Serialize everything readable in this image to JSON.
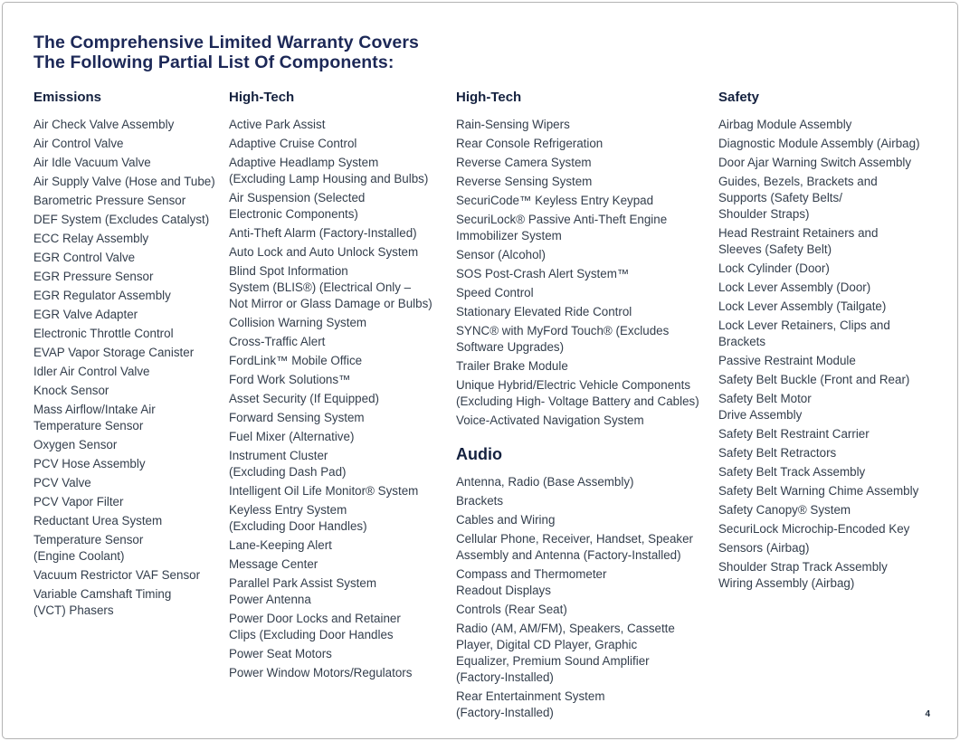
{
  "page": {
    "title_lines": {
      "line1": "The Comprehensive Limited Warranty Covers",
      "line2": "The Following Partial List Of Components:"
    },
    "page_number": "4",
    "colors": {
      "title": "#1c2857",
      "heading": "#14213f",
      "body": "#333e4c",
      "page_border": "#b3b3b3"
    }
  },
  "columns": [
    {
      "sections": [
        {
          "heading": "Emissions",
          "heading_large": false,
          "items": [
            "Air Check Valve Assembly",
            "Air Control Valve",
            "Air Idle Vacuum Valve",
            "Air Supply Valve (Hose and Tube)",
            "Barometric Pressure Sensor",
            "DEF System (Excludes Catalyst)",
            "ECC Relay Assembly",
            "EGR Control Valve",
            "EGR Pressure Sensor",
            "EGR Regulator Assembly",
            "EGR Valve Adapter",
            "Electronic Throttle Control",
            "EVAP Vapor Storage Canister",
            "Idler Air Control Valve",
            "Knock Sensor",
            "Mass Airflow/Intake Air\nTemperature Sensor",
            "Oxygen Sensor",
            "PCV Hose Assembly",
            "PCV Valve",
            "PCV Vapor Filter",
            "Reductant Urea System",
            "Temperature Sensor\n(Engine Coolant)",
            "Vacuum Restrictor VAF Sensor",
            "Variable Camshaft Timing\n(VCT) Phasers"
          ]
        }
      ]
    },
    {
      "sections": [
        {
          "heading": "High-Tech",
          "heading_large": false,
          "items": [
            "Active Park Assist",
            "Adaptive Cruise Control",
            "Adaptive Headlamp System\n(Excluding Lamp Housing and Bulbs)",
            "Air Suspension (Selected\nElectronic Components)",
            "Anti-Theft Alarm (Factory-Installed)",
            "Auto Lock and Auto Unlock System",
            "Blind Spot Information\nSystem (BLIS®) (Electrical Only –\nNot Mirror or Glass Damage or Bulbs)",
            "Collision Warning System",
            "Cross-Traffic Alert",
            "FordLink™ Mobile Office",
            "Ford Work Solutions™",
            "Asset Security (If Equipped)",
            "Forward Sensing System",
            "Fuel Mixer (Alternative)",
            "Instrument Cluster\n(Excluding Dash Pad)",
            "Intelligent Oil Life Monitor® System",
            "Keyless Entry System\n(Excluding Door Handles)",
            "Lane-Keeping Alert",
            "Message Center",
            "Parallel Park Assist System\nPower Antenna",
            "Power Door Locks and Retainer\nClips (Excluding Door Handles",
            "Power Seat Motors",
            "Power Window Motors/Regulators"
          ]
        }
      ]
    },
    {
      "sections": [
        {
          "heading": "High-Tech",
          "heading_large": false,
          "items": [
            "Rain-Sensing Wipers",
            "Rear Console Refrigeration",
            "Reverse Camera System",
            "Reverse Sensing System",
            "SecuriCode™ Keyless Entry Keypad",
            "SecuriLock® Passive Anti-Theft Engine\nImmobilizer System",
            "Sensor (Alcohol)",
            "SOS Post-Crash Alert System™",
            "Speed Control",
            "Stationary Elevated Ride Control",
            "SYNC® with MyFord Touch® (Excludes\nSoftware Upgrades)",
            "Trailer Brake Module",
            "Unique Hybrid/Electric Vehicle Components\n(Excluding High- Voltage Battery and Cables)",
            "Voice-Activated Navigation System"
          ]
        },
        {
          "heading": "Audio",
          "heading_large": true,
          "items": [
            "Antenna, Radio (Base Assembly)",
            "Brackets",
            "Cables and Wiring",
            "Cellular Phone, Receiver, Handset, Speaker\nAssembly and Antenna (Factory-Installed)",
            "Compass and Thermometer\nReadout Displays",
            "Controls (Rear Seat)",
            "Radio (AM, AM/FM), Speakers, Cassette\nPlayer, Digital CD Player, Graphic\nEqualizer, Premium Sound Amplifier\n(Factory-Installed)",
            "Rear Entertainment System\n(Factory-Installed)"
          ]
        }
      ]
    },
    {
      "sections": [
        {
          "heading": "Safety",
          "heading_large": false,
          "items": [
            "Airbag Module Assembly",
            "Diagnostic Module Assembly (Airbag)",
            "Door Ajar Warning Switch Assembly",
            "Guides, Bezels, Brackets and\nSupports (Safety Belts/\nShoulder Straps)",
            "Head Restraint Retainers and\nSleeves (Safety Belt)",
            "Lock Cylinder (Door)",
            "Lock Lever Assembly (Door)",
            "Lock Lever Assembly (Tailgate)",
            "Lock Lever Retainers, Clips and\nBrackets",
            "Passive Restraint Module",
            "Safety Belt Buckle (Front and Rear)",
            "Safety Belt Motor\nDrive Assembly",
            "Safety Belt Restraint Carrier",
            "Safety Belt Retractors",
            "Safety Belt Track Assembly",
            "Safety Belt Warning Chime Assembly",
            "Safety Canopy® System",
            "SecuriLock Microchip-Encoded Key",
            "Sensors (Airbag)",
            "Shoulder Strap Track Assembly\nWiring Assembly (Airbag)"
          ]
        }
      ]
    }
  ]
}
